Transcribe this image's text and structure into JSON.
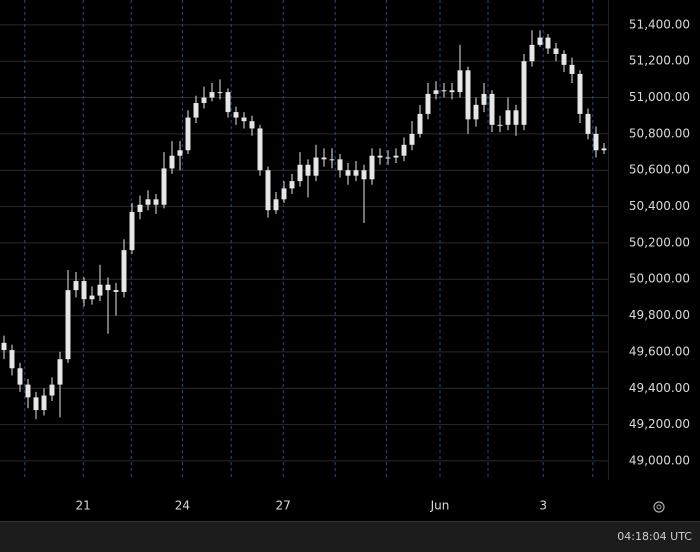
{
  "chart_data": {
    "type": "candlestick",
    "color": "#e6e6e6",
    "open": [
      49650,
      49610,
      49510,
      49420,
      49350,
      49280,
      49360,
      49420,
      49560,
      49940,
      49990,
      49890,
      49910,
      49970,
      49940,
      49930,
      50160,
      50370,
      50410,
      50440,
      50410,
      50610,
      50680,
      50710,
      50890,
      50970,
      51000,
      51030,
      51030,
      50920,
      50890,
      50870,
      50830,
      50600,
      50380,
      50440,
      50500,
      50540,
      50630,
      50570,
      50670,
      50660,
      50660,
      50600,
      50570,
      50600,
      50550,
      50680,
      50670,
      50670,
      50680,
      50740,
      50800,
      50910,
      51020,
      51040,
      51040,
      51030,
      51150,
      50880,
      50960,
      51020,
      50850,
      50850,
      50930,
      50850,
      51200,
      51290,
      51330,
      51270,
      51240,
      51180,
      51130,
      50910,
      50800,
      50710
    ],
    "high": [
      49690,
      49640,
      49540,
      49450,
      49380,
      49400,
      49460,
      49600,
      50050,
      50040,
      50010,
      49960,
      50080,
      50010,
      49980,
      50220,
      50420,
      50460,
      50490,
      50470,
      50700,
      50760,
      50760,
      50930,
      51010,
      51060,
      51080,
      51100,
      51050,
      50950,
      50920,
      50900,
      50850,
      50620,
      50480,
      50540,
      50580,
      50700,
      50660,
      50740,
      50720,
      50720,
      50690,
      50640,
      50650,
      50630,
      50720,
      50720,
      50710,
      50720,
      50780,
      50870,
      50960,
      51080,
      51090,
      51080,
      51080,
      51290,
      51170,
      51000,
      51080,
      51040,
      50900,
      51000,
      50960,
      51240,
      51370,
      51370,
      51350,
      51300,
      51260,
      51220,
      51150,
      50940,
      50840,
      50750
    ],
    "low": [
      49560,
      49470,
      49380,
      49290,
      49230,
      49250,
      49330,
      49240,
      49540,
      49900,
      49850,
      49860,
      49880,
      49700,
      49800,
      49900,
      50140,
      50330,
      50380,
      50360,
      50390,
      50580,
      50600,
      50690,
      50860,
      50940,
      50980,
      50990,
      50890,
      50850,
      50830,
      50790,
      50570,
      50340,
      50360,
      50420,
      50470,
      50510,
      50450,
      50540,
      50620,
      50610,
      50560,
      50520,
      50540,
      50310,
      50520,
      50630,
      50630,
      50640,
      50650,
      50710,
      50780,
      50880,
      50990,
      51000,
      50990,
      51000,
      50800,
      50840,
      50920,
      50810,
      50810,
      50820,
      50790,
      50820,
      51170,
      51280,
      51240,
      51200,
      51140,
      51080,
      50860,
      50770,
      50670,
      50690
    ],
    "close": [
      49610,
      49510,
      49420,
      49350,
      49280,
      49360,
      49420,
      49560,
      49940,
      49990,
      49890,
      49910,
      49970,
      49940,
      49930,
      50160,
      50370,
      50410,
      50440,
      50410,
      50610,
      50680,
      50710,
      50890,
      50970,
      51000,
      51030,
      51030,
      50920,
      50890,
      50870,
      50830,
      50600,
      50380,
      50440,
      50500,
      50540,
      50630,
      50570,
      50670,
      50660,
      50660,
      50600,
      50570,
      50600,
      50550,
      50680,
      50670,
      50670,
      50680,
      50740,
      50800,
      50910,
      51020,
      51040,
      51040,
      51030,
      51150,
      50880,
      50960,
      51020,
      50850,
      50850,
      50930,
      50850,
      51200,
      51290,
      51330,
      51270,
      51240,
      51180,
      51130,
      50910,
      50800,
      50710,
      50720
    ],
    "xlim": [
      -0.5,
      75.5
    ],
    "xticks": [
      {
        "value": 2.6,
        "label": null
      },
      {
        "value": 9.9,
        "label": "21"
      },
      {
        "value": 15.9,
        "label": null
      },
      {
        "value": 22.3,
        "label": "24"
      },
      {
        "value": 28.4,
        "label": null
      },
      {
        "value": 34.9,
        "label": "27"
      },
      {
        "value": 41.4,
        "label": null
      },
      {
        "value": 47.8,
        "label": null
      },
      {
        "value": 54.5,
        "label": "Jun"
      },
      {
        "value": 60.5,
        "label": null
      },
      {
        "value": 67.4,
        "label": "3"
      },
      {
        "value": 73.6,
        "label": null
      }
    ],
    "ylim": [
      48895,
      51537
    ],
    "yticks": [
      {
        "value": 49000,
        "label": "49,000.00"
      },
      {
        "value": 49200,
        "label": "49,200.00"
      },
      {
        "value": 49400,
        "label": "49,400.00"
      },
      {
        "value": 49600,
        "label": "49,600.00"
      },
      {
        "value": 49800,
        "label": "49,800.00"
      },
      {
        "value": 50000,
        "label": "50,000.00"
      },
      {
        "value": 50200,
        "label": "50,200.00"
      },
      {
        "value": 50400,
        "label": "50,400.00"
      },
      {
        "value": 50600,
        "label": "50,600.00"
      },
      {
        "value": 50800,
        "label": "50,800.00"
      },
      {
        "value": 51000,
        "label": "51,000.00"
      },
      {
        "value": 51200,
        "label": "51,200.00"
      },
      {
        "value": 51400,
        "label": "51,400.00"
      }
    ],
    "grid": true
  },
  "status_time": "04:18:04 UTC"
}
